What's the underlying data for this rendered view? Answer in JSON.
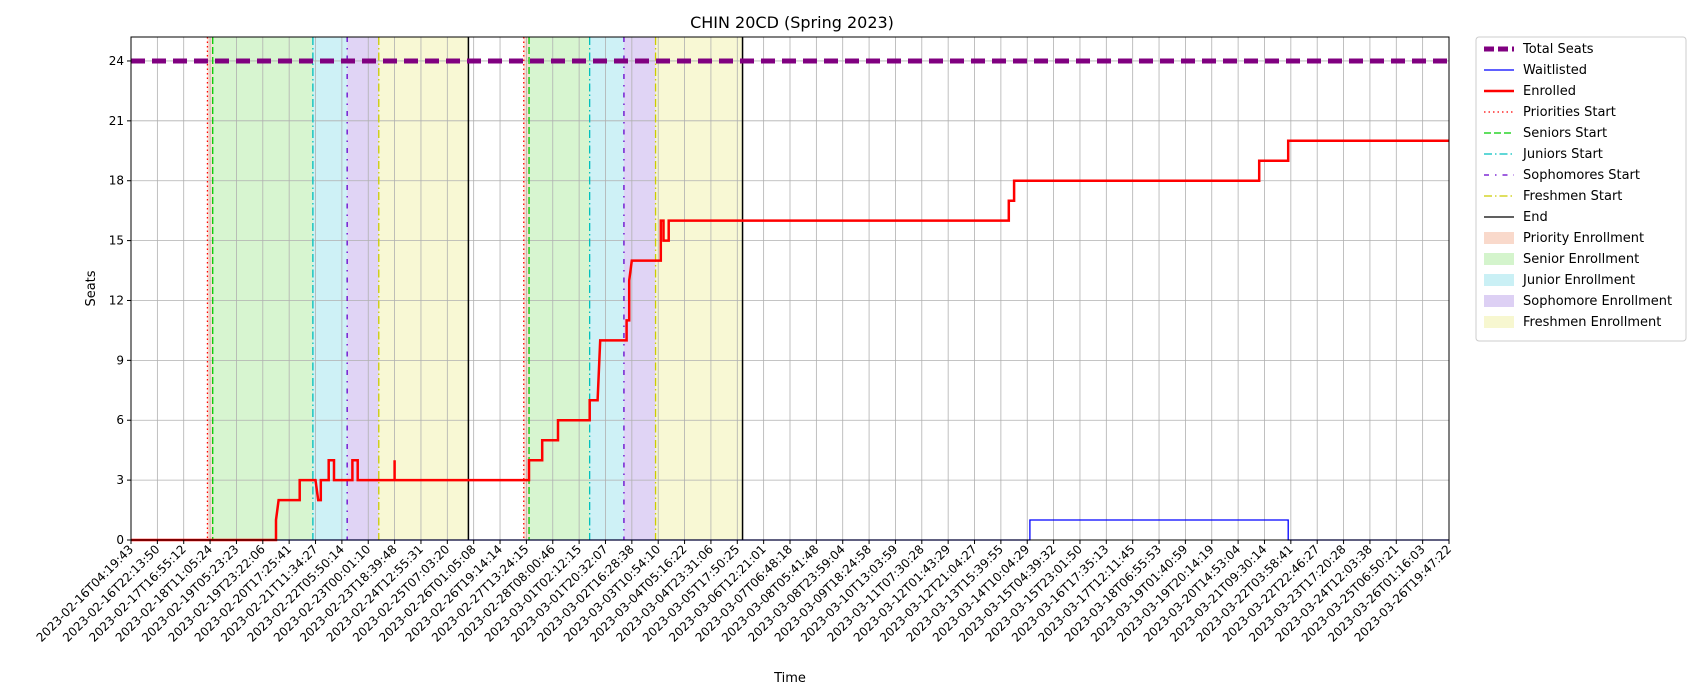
{
  "chart_data": {
    "type": "line",
    "title": "CHIN 20CD (Spring 2023)",
    "xlabel": "Time",
    "ylabel": "Seats",
    "ylim": [
      0,
      25.2
    ],
    "yticks": [
      0,
      3,
      6,
      9,
      12,
      15,
      18,
      21,
      24
    ],
    "grid": true,
    "legend_position": "outside-right",
    "x_range": [
      "2023-02-16T04:19:43",
      "2023-03-26T19:47:22"
    ],
    "x_tick_labels": [
      "2023-02-16T04:19:43",
      "2023-02-16T22:13:50",
      "2023-02-17T16:55:12",
      "2023-02-18T11:05:24",
      "2023-02-19T05:23:23",
      "2023-02-19T23:22:06",
      "2023-02-20T17:25:41",
      "2023-02-21T11:34:27",
      "2023-02-22T05:50:14",
      "2023-02-23T00:01:10",
      "2023-02-23T18:39:48",
      "2023-02-24T12:55:31",
      "2023-02-25T07:03:20",
      "2023-02-26T01:05:08",
      "2023-02-26T19:14:14",
      "2023-02-27T13:24:15",
      "2023-02-28T08:00:46",
      "2023-03-01T02:12:15",
      "2023-03-01T20:32:07",
      "2023-03-02T16:28:38",
      "2023-03-03T10:54:10",
      "2023-03-04T05:16:22",
      "2023-03-04T23:31:06",
      "2023-03-05T17:50:25",
      "2023-03-06T12:21:01",
      "2023-03-07T06:48:18",
      "2023-03-08T05:41:48",
      "2023-03-08T23:59:04",
      "2023-03-09T18:24:58",
      "2023-03-10T13:03:59",
      "2023-03-11T07:30:28",
      "2023-03-12T01:43:29",
      "2023-03-12T21:04:27",
      "2023-03-13T15:39:55",
      "2023-03-14T10:04:29",
      "2023-03-15T04:39:32",
      "2023-03-15T23:01:50",
      "2023-03-16T17:35:13",
      "2023-03-17T12:11:45",
      "2023-03-18T06:55:53",
      "2023-03-19T01:40:59",
      "2023-03-19T20:14:19",
      "2023-03-20T14:53:04",
      "2023-03-21T09:30:14",
      "2023-03-22T03:58:41",
      "2023-03-22T22:46:27",
      "2023-03-23T17:20:28",
      "2023-03-24T12:03:38",
      "2023-03-25T06:50:21",
      "2023-03-26T01:16:03",
      "2023-03-26T19:47:22"
    ],
    "series": [
      {
        "name": "Total Seats",
        "color": "#800080",
        "style": "dashed-thick",
        "points": [
          [
            0,
            24
          ],
          [
            50,
            24
          ]
        ]
      },
      {
        "name": "Waitlisted",
        "color": "#0000ff",
        "style": "solid",
        "points": [
          [
            0,
            0
          ],
          [
            34.1,
            0
          ],
          [
            34.1,
            1
          ],
          [
            43.9,
            1
          ],
          [
            43.9,
            0
          ],
          [
            50,
            0
          ]
        ]
      },
      {
        "name": "Enrolled",
        "color": "#ff0000",
        "style": "solid-thick",
        "points": [
          [
            0,
            0
          ],
          [
            5.5,
            0
          ],
          [
            5.5,
            1
          ],
          [
            5.6,
            2
          ],
          [
            6.4,
            2
          ],
          [
            6.4,
            3
          ],
          [
            7.0,
            3
          ],
          [
            7.1,
            2
          ],
          [
            7.2,
            2
          ],
          [
            7.2,
            3
          ],
          [
            7.5,
            3
          ],
          [
            7.5,
            4
          ],
          [
            7.7,
            4
          ],
          [
            7.7,
            3
          ],
          [
            8.4,
            3
          ],
          [
            8.4,
            4
          ],
          [
            8.6,
            4
          ],
          [
            8.6,
            3
          ],
          [
            10.0,
            3
          ],
          [
            10.0,
            4
          ],
          [
            10.0,
            3
          ],
          [
            15.1,
            3
          ],
          [
            15.1,
            4
          ],
          [
            15.6,
            4
          ],
          [
            15.6,
            5
          ],
          [
            16.2,
            5
          ],
          [
            16.2,
            6
          ],
          [
            17.4,
            6
          ],
          [
            17.4,
            7
          ],
          [
            17.7,
            7
          ],
          [
            17.8,
            10
          ],
          [
            18.8,
            10
          ],
          [
            18.8,
            11
          ],
          [
            18.9,
            11
          ],
          [
            18.9,
            13
          ],
          [
            19.0,
            14
          ],
          [
            20.1,
            14
          ],
          [
            20.1,
            16
          ],
          [
            20.2,
            16
          ],
          [
            20.2,
            15
          ],
          [
            20.4,
            15
          ],
          [
            20.4,
            16
          ],
          [
            33.3,
            16
          ],
          [
            33.3,
            17
          ],
          [
            33.5,
            17
          ],
          [
            33.5,
            18
          ],
          [
            42.8,
            18
          ],
          [
            42.8,
            19
          ],
          [
            43.9,
            19
          ],
          [
            43.9,
            20
          ],
          [
            50,
            20
          ]
        ]
      }
    ],
    "events": [
      {
        "name": "Priorities Start",
        "color": "#ff0000",
        "style": "dotted",
        "x": [
          2.9,
          14.9
        ]
      },
      {
        "name": "Seniors Start",
        "color": "#00cc00",
        "style": "dashed",
        "x": [
          3.1,
          15.1
        ]
      },
      {
        "name": "Juniors Start",
        "color": "#00bfbf",
        "style": "dashdot",
        "x": [
          6.9,
          17.4
        ]
      },
      {
        "name": "Sophomores Start",
        "color": "#6600cc",
        "style": "dashdot-fine",
        "x": [
          8.2,
          18.7
        ]
      },
      {
        "name": "Freshmen Start",
        "color": "#cccc00",
        "style": "dashdot",
        "x": [
          9.4,
          19.9
        ]
      },
      {
        "name": "End",
        "color": "#000000",
        "style": "solid",
        "x": [
          12.8,
          23.2
        ]
      }
    ],
    "periods": [
      {
        "name": "Priority Enrollment",
        "color": "#f5bfa8",
        "ranges": [
          [
            2.9,
            3.1
          ],
          [
            14.9,
            15.1
          ]
        ]
      },
      {
        "name": "Senior Enrollment",
        "color": "#b7ecaa",
        "ranges": [
          [
            3.1,
            6.9
          ],
          [
            15.1,
            17.4
          ]
        ]
      },
      {
        "name": "Junior Enrollment",
        "color": "#a6e6ef",
        "ranges": [
          [
            6.9,
            8.2
          ],
          [
            17.4,
            18.7
          ]
        ]
      },
      {
        "name": "Sophomore Enrollment",
        "color": "#c6b0ec",
        "ranges": [
          [
            8.2,
            9.4
          ],
          [
            18.7,
            19.9
          ]
        ]
      },
      {
        "name": "Freshmen Enrollment",
        "color": "#f2f2b0",
        "ranges": [
          [
            9.4,
            12.8
          ],
          [
            19.9,
            23.2
          ]
        ]
      }
    ]
  }
}
